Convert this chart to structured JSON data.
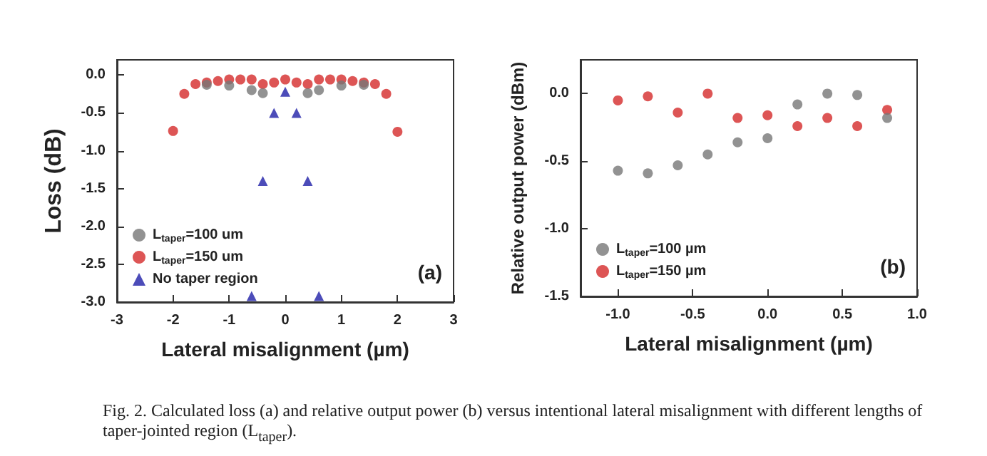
{
  "chart_data": [
    {
      "type": "scatter",
      "xlabel": "Lateral misalignment (µm)",
      "ylabel": "Loss (dB)",
      "xlim": [
        -3,
        3
      ],
      "xticks": [
        -3,
        -2,
        -1,
        0,
        1,
        2,
        3
      ],
      "ylim": [
        -3,
        0.2
      ],
      "yticks": [
        {
          "value": 0,
          "label": "0.0"
        },
        -0.5,
        {
          "value": -1,
          "label": "-1.0"
        },
        -1.5,
        {
          "value": -2,
          "label": "-2.0"
        },
        -2.5,
        {
          "value": -3,
          "label": "-3.0"
        }
      ],
      "grid": false,
      "legend": "bottom left",
      "annotations": [
        "(a)"
      ],
      "series": [
        {
          "name": "L$_{taper}$=100 um",
          "color": "#777777",
          "marker": "circle",
          "x": [
            -1.4,
            -1.0,
            -0.6,
            -0.4,
            0.4,
            0.6,
            1.0,
            1.4
          ],
          "values": [
            -0.13,
            -0.14,
            -0.2,
            -0.24,
            -0.24,
            -0.2,
            -0.14,
            -0.13
          ]
        },
        {
          "name": "L$_{taper}$=150 um",
          "color": "#d42a2a",
          "marker": "circle",
          "x": [
            -2.0,
            -1.8,
            -1.6,
            -1.4,
            -1.2,
            -1.0,
            -0.8,
            -0.6,
            -0.4,
            -0.2,
            0.0,
            0.2,
            0.4,
            0.6,
            0.8,
            1.0,
            1.2,
            1.4,
            1.6,
            1.8,
            2.0
          ],
          "values": [
            -0.74,
            -0.25,
            -0.12,
            -0.1,
            -0.08,
            -0.06,
            -0.06,
            -0.06,
            -0.12,
            -0.1,
            -0.06,
            -0.1,
            -0.12,
            -0.06,
            -0.06,
            -0.06,
            -0.08,
            -0.1,
            -0.12,
            -0.25,
            -0.75
          ]
        },
        {
          "name": "No taper region",
          "color": "#1f1fa8",
          "marker": "triangle",
          "x": [
            -0.6,
            -0.4,
            -0.2,
            0.0,
            0.2,
            0.4,
            0.6
          ],
          "values": [
            -2.92,
            -1.4,
            -0.5,
            -0.22,
            -0.5,
            -1.4,
            -2.92
          ]
        }
      ]
    },
    {
      "type": "scatter",
      "xlabel": "Lateral misalignment (µm)",
      "ylabel": "Relative output power (dBm)",
      "xlim": [
        -1.25,
        1.0
      ],
      "xticks": [
        {
          "value": -1,
          "label": "-1.0"
        },
        -0.5,
        {
          "value": 0,
          "label": "0.0"
        },
        0.5,
        {
          "value": 1,
          "label": "1.0"
        }
      ],
      "ylim": [
        -1.5,
        0.25
      ],
      "yticks": [
        {
          "value": 0,
          "label": "0.0"
        },
        -0.5,
        {
          "value": -1,
          "label": "-1.0"
        },
        -1.5
      ],
      "grid": false,
      "legend": "bottom left",
      "annotations": [
        "(b)",
        "Fig. 2. Calculated loss (a) and relative output power (b) versus intentional lateral misalignment with different lengths of taper-jointed region (L$_{taper}$)."
      ],
      "series": [
        {
          "name": "L$_{taper}$=100 µm",
          "color": "#777777",
          "marker": "circle",
          "x": [
            -1.0,
            -0.8,
            -0.6,
            -0.4,
            -0.2,
            0.0,
            0.2,
            0.4,
            0.6,
            0.8
          ],
          "values": [
            -0.57,
            -0.59,
            -0.53,
            -0.45,
            -0.36,
            -0.33,
            -0.08,
            0.0,
            -0.01,
            -0.18
          ]
        },
        {
          "name": "L$_{taper}$=150 µm",
          "color": "#d42a2a",
          "marker": "circle",
          "x": [
            -1.0,
            -0.8,
            -0.6,
            -0.4,
            -0.2,
            0.0,
            0.2,
            0.4,
            0.6,
            0.8
          ],
          "values": [
            -0.05,
            -0.02,
            -0.14,
            0.0,
            -0.18,
            -0.16,
            -0.24,
            -0.18,
            -0.24,
            -0.12
          ]
        }
      ]
    }
  ]
}
